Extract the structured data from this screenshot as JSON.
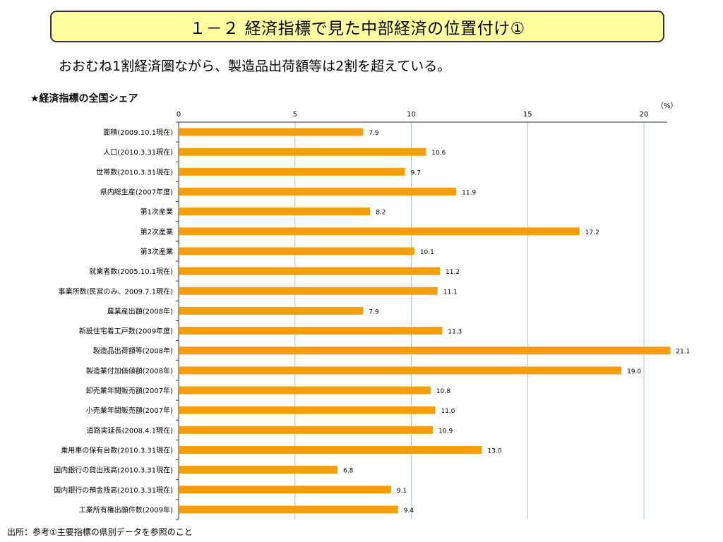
{
  "header": {
    "title": "１－２ 経済指標で見た中部経済の位置付け①",
    "subtitle": "おおむね1割経済圏ながら、製造品出荷額等は2割を超えている。"
  },
  "chart_section": {
    "title": "★経済指標の全国シェア",
    "unit": "（%）"
  },
  "footer": {
    "source": "出所：参考①主要指標の県別データを参照のこと"
  },
  "colors": {
    "bar": "#f59e0b",
    "grid": "#a9c6d8",
    "title_bg": "#ffffa0"
  },
  "chart_data": {
    "type": "bar",
    "orientation": "horizontal",
    "categories": [
      "面積(2009.10.1現在)",
      "人口(2010.3.31現在)",
      "世帯数(2010.3.31現在)",
      "県内総生産(2007年度)",
      "第1次産業",
      "第2次産業",
      "第3次産業",
      "就業者数(2005.10.1現在)",
      "事業所数(民営のみ、2009.7.1現在)",
      "農業産出額(2008年)",
      "新設住宅着工戸数(2009年度)",
      "製造品出荷額等(2008年)",
      "製造業付加価値額(2008年)",
      "卸売業年間販売額(2007年)",
      "小売業年間販売額(2007年)",
      "道路実延長(2008.4.1現在)",
      "乗用車の保有台数(2010.3.31現在)",
      "国内銀行の貸出残高(2010.3.31現在)",
      "国内銀行の預金残高(2010.3.31現在)",
      "工業所有権出願件数(2009年)"
    ],
    "values": [
      7.9,
      10.6,
      9.7,
      11.9,
      8.2,
      17.2,
      10.1,
      11.2,
      11.1,
      7.9,
      11.3,
      21.1,
      19.0,
      10.8,
      11.0,
      10.9,
      13.0,
      6.8,
      9.1,
      9.4
    ],
    "value_labels": [
      "7.9",
      "10.6",
      "9.7",
      "11.9",
      "8.2",
      "17.2",
      "10.1",
      "11.2",
      "11.1",
      "7.9",
      "11.3",
      "21.1",
      "19.0",
      "10.8",
      "11.0",
      "10.9",
      "13.0",
      "6.8",
      "9.1",
      "9.4"
    ],
    "xlim": [
      0,
      21
    ],
    "xticks": [
      0,
      5,
      10,
      15,
      20
    ],
    "xtick_labels": [
      "0",
      "5",
      "10",
      "15",
      "20"
    ],
    "grid": true,
    "axis_position": "top"
  }
}
